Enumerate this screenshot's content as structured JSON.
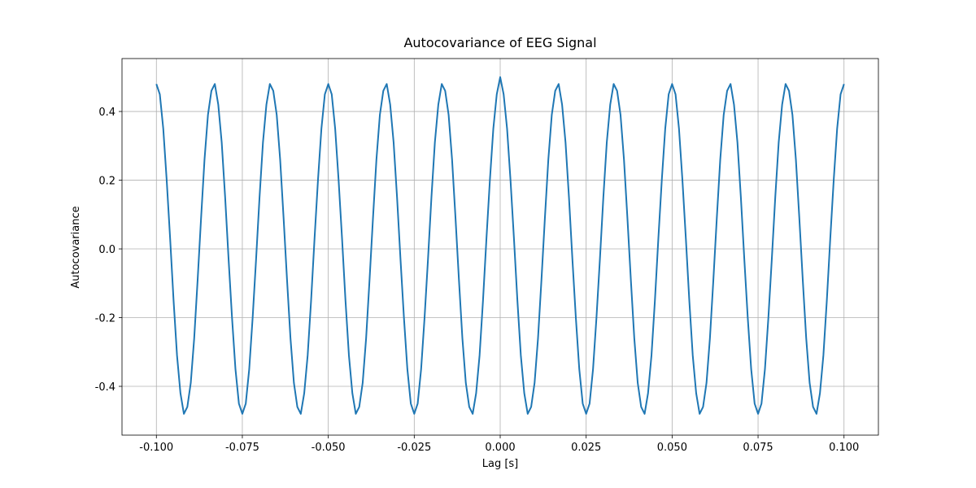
{
  "chart_data": {
    "type": "line",
    "title": "Autocovariance of EEG Signal",
    "xlabel": "Lag [s]",
    "ylabel": "Autocovariance",
    "color": "#1f77b4",
    "grid": true,
    "xlim": [
      -0.11,
      0.11
    ],
    "ylim": [
      -0.542,
      0.554
    ],
    "xticks": [
      {
        "value": -0.1,
        "label": "-0.100"
      },
      -0.075,
      {
        "value": -0.05,
        "label": "-0.050"
      },
      -0.025,
      {
        "value": 0,
        "label": "0.000"
      },
      0.025,
      {
        "value": 0.05,
        "label": "0.050"
      },
      0.075,
      {
        "value": 0.1,
        "label": "0.100"
      }
    ],
    "yticks": [
      -0.4,
      -0.2,
      {
        "value": 0,
        "label": "0.0"
      },
      0.2,
      0.4
    ],
    "x": [
      -0.1,
      -0.099,
      -0.098,
      -0.097,
      -0.096,
      -0.095,
      -0.094,
      -0.093,
      -0.092,
      -0.091,
      -0.09,
      -0.089,
      -0.088,
      -0.087,
      -0.086,
      -0.085,
      -0.084,
      -0.083,
      -0.082,
      -0.081,
      -0.08,
      -0.079,
      -0.078,
      -0.077,
      -0.076,
      -0.075,
      -0.074,
      -0.073,
      -0.072,
      -0.071,
      -0.07,
      -0.069,
      -0.068,
      -0.067,
      -0.066,
      -0.065,
      -0.064,
      -0.063,
      -0.062,
      -0.061,
      -0.06,
      -0.059,
      -0.058,
      -0.057,
      -0.056,
      -0.055,
      -0.054,
      -0.053,
      -0.052,
      -0.051,
      -0.05,
      -0.049,
      -0.048,
      -0.047,
      -0.046,
      -0.045,
      -0.044,
      -0.043,
      -0.042,
      -0.041,
      -0.04,
      -0.039,
      -0.038,
      -0.037,
      -0.036,
      -0.035,
      -0.034,
      -0.033,
      -0.032,
      -0.031,
      -0.03,
      -0.029,
      -0.028,
      -0.027,
      -0.026,
      -0.025,
      -0.024,
      -0.023,
      -0.022,
      -0.021,
      -0.02,
      -0.019,
      -0.018,
      -0.017,
      -0.016,
      -0.015,
      -0.014,
      -0.013,
      -0.012,
      -0.011,
      -0.01,
      -0.009,
      -0.008,
      -0.007,
      -0.006,
      -0.005,
      -0.004,
      -0.003,
      -0.002,
      -0.001,
      0,
      0.001,
      0.002,
      0.003,
      0.004,
      0.005,
      0.006,
      0.007,
      0.008,
      0.009,
      0.01,
      0.011,
      0.012,
      0.013,
      0.014,
      0.015,
      0.016,
      0.017,
      0.018,
      0.019,
      0.02,
      0.021,
      0.022,
      0.023,
      0.024,
      0.025,
      0.026,
      0.027,
      0.028,
      0.029,
      0.03,
      0.031,
      0.032,
      0.033,
      0.034,
      0.035,
      0.036,
      0.037,
      0.038,
      0.039,
      0.04,
      0.041,
      0.042,
      0.043,
      0.044,
      0.045,
      0.046,
      0.047,
      0.048,
      0.049,
      0.05,
      0.051,
      0.052,
      0.053,
      0.054,
      0.055,
      0.056,
      0.057,
      0.058,
      0.059,
      0.06,
      0.061,
      0.062,
      0.063,
      0.064,
      0.065,
      0.066,
      0.067,
      0.068,
      0.069,
      0.07,
      0.071,
      0.072,
      0.073,
      0.074,
      0.075,
      0.076,
      0.077,
      0.078,
      0.079,
      0.08,
      0.081,
      0.082,
      0.083,
      0.084,
      0.085,
      0.086,
      0.087,
      0.088,
      0.089,
      0.09,
      0.091,
      0.092,
      0.093,
      0.094,
      0.095,
      0.096,
      0.097,
      0.098,
      0.099,
      0.1
    ],
    "values": [
      0.48,
      0.45,
      0.35,
      0.2,
      0.03,
      -0.15,
      -0.31,
      -0.42,
      -0.48,
      -0.46,
      -0.39,
      -0.26,
      -0.09,
      0.09,
      0.26,
      0.39,
      0.46,
      0.48,
      0.42,
      0.31,
      0.15,
      -0.03,
      -0.2,
      -0.35,
      -0.45,
      -0.48,
      -0.45,
      -0.35,
      -0.2,
      -0.03,
      0.15,
      0.31,
      0.42,
      0.48,
      0.46,
      0.39,
      0.26,
      0.09,
      -0.09,
      -0.26,
      -0.39,
      -0.46,
      -0.48,
      -0.42,
      -0.31,
      -0.15,
      0.03,
      0.2,
      0.35,
      0.45,
      0.48,
      0.45,
      0.35,
      0.2,
      0.03,
      -0.15,
      -0.31,
      -0.42,
      -0.48,
      -0.46,
      -0.39,
      -0.26,
      -0.09,
      0.09,
      0.26,
      0.39,
      0.46,
      0.48,
      0.42,
      0.31,
      0.15,
      -0.03,
      -0.2,
      -0.35,
      -0.45,
      -0.48,
      -0.45,
      -0.35,
      -0.2,
      -0.03,
      0.15,
      0.31,
      0.42,
      0.48,
      0.46,
      0.39,
      0.26,
      0.09,
      -0.09,
      -0.26,
      -0.39,
      -0.46,
      -0.48,
      -0.42,
      -0.31,
      -0.15,
      0.03,
      0.2,
      0.35,
      0.45,
      0.5,
      0.45,
      0.35,
      0.2,
      0.03,
      -0.15,
      -0.31,
      -0.42,
      -0.48,
      -0.46,
      -0.39,
      -0.26,
      -0.09,
      0.09,
      0.26,
      0.39,
      0.46,
      0.48,
      0.42,
      0.31,
      0.15,
      -0.03,
      -0.2,
      -0.35,
      -0.45,
      -0.48,
      -0.45,
      -0.35,
      -0.2,
      -0.03,
      0.15,
      0.31,
      0.42,
      0.48,
      0.46,
      0.39,
      0.26,
      0.09,
      -0.09,
      -0.26,
      -0.39,
      -0.46,
      -0.48,
      -0.42,
      -0.31,
      -0.15,
      0.03,
      0.2,
      0.35,
      0.45,
      0.48,
      0.45,
      0.35,
      0.2,
      0.03,
      -0.15,
      -0.31,
      -0.42,
      -0.48,
      -0.46,
      -0.39,
      -0.26,
      -0.09,
      0.09,
      0.26,
      0.39,
      0.46,
      0.48,
      0.42,
      0.31,
      0.15,
      -0.03,
      -0.2,
      -0.35,
      -0.45,
      -0.48,
      -0.45,
      -0.35,
      -0.2,
      -0.03,
      0.15,
      0.31,
      0.42,
      0.48,
      0.46,
      0.39,
      0.26,
      0.09,
      -0.09,
      -0.26,
      -0.39,
      -0.46,
      -0.48,
      -0.42,
      -0.31,
      -0.15,
      0.03,
      0.2,
      0.35,
      0.45,
      0.48
    ]
  }
}
